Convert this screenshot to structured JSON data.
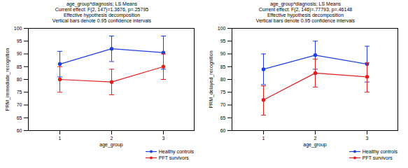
{
  "chart_data": [
    {
      "type": "line",
      "title": "age_group*diagnosis; LS Means",
      "subtitle": [
        "Current effect: F(2, 147)=1.3676, p=.25795",
        "Effective hypothesis decomposition",
        "Vertical bars denote 0.95 confidence intervals"
      ],
      "x_label": "age_group",
      "y_label": "PRM_immediate_recognition",
      "categories": [
        "1",
        "2",
        "3"
      ],
      "series": [
        {
          "name": "Healthy controls",
          "color": "#1f3fe0",
          "marker": "circle",
          "values": [
            86,
            92,
            90.5
          ],
          "ci_low": [
            81,
            87,
            84
          ],
          "ci_high": [
            91,
            97,
            97
          ]
        },
        {
          "name": "PFT survivors",
          "color": "#e01f1f",
          "marker": "circle",
          "values": [
            80,
            79,
            85
          ],
          "ci_low": [
            75,
            74,
            80
          ],
          "ci_high": [
            85,
            84,
            90
          ]
        }
      ],
      "ylim": [
        60,
        100
      ],
      "yticks": [
        60,
        65,
        70,
        75,
        80,
        85,
        90,
        95,
        100
      ],
      "grid": false,
      "legend": "bottom-right"
    },
    {
      "type": "line",
      "title": "age_group*diagnosis; LS Means",
      "subtitle": [
        "Current effect: F(2, 146)=.77793, p=.46148",
        "Effective hypothesis decomposition",
        "Vertical bars denote 0.95 confidence intervals"
      ],
      "x_label": "age_group",
      "y_label": "PRM_delayed_recognition",
      "categories": [
        "1",
        "2",
        "3"
      ],
      "series": [
        {
          "name": "Healthy controls",
          "color": "#1f3fe0",
          "marker": "circle",
          "values": [
            84,
            89.5,
            86
          ],
          "ci_low": [
            78,
            84,
            79
          ],
          "ci_high": [
            90,
            95,
            93
          ]
        },
        {
          "name": "PFT survivors",
          "color": "#e01f1f",
          "marker": "circle",
          "values": [
            72,
            82.5,
            81
          ],
          "ci_low": [
            66,
            77,
            75
          ],
          "ci_high": [
            77.5,
            88,
            86.5
          ]
        }
      ],
      "ylim": [
        60,
        100
      ],
      "yticks": [
        60,
        65,
        70,
        75,
        80,
        85,
        90,
        95,
        100
      ],
      "grid": false,
      "legend": "bottom-right"
    }
  ]
}
